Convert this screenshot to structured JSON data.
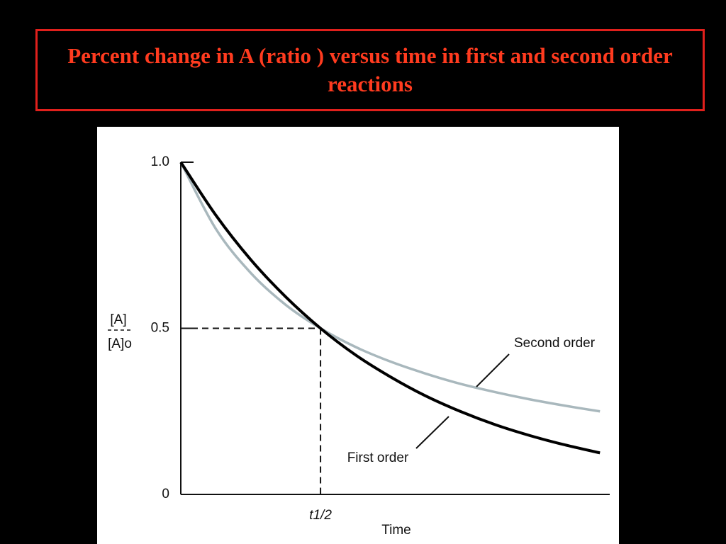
{
  "chart_data": {
    "type": "line",
    "title": "Percent change in A (ratio ) versus time in first and second order reactions",
    "x_label": "Time",
    "y_label": {
      "numerator": "[A]",
      "denominator": "[A]o"
    },
    "x": [
      0,
      0.25,
      0.5,
      0.75,
      1,
      1.25,
      1.5,
      1.75,
      2,
      2.25,
      2.5,
      2.75,
      3
    ],
    "series": [
      {
        "name": "First order",
        "color": "#000000",
        "values": [
          1,
          0.841,
          0.707,
          0.595,
          0.5,
          0.42,
          0.354,
          0.297,
          0.25,
          0.21,
          0.177,
          0.149,
          0.125
        ]
      },
      {
        "name": "Second order",
        "color": "#a9b8bd",
        "values": [
          1,
          0.8,
          0.667,
          0.571,
          0.5,
          0.444,
          0.4,
          0.364,
          0.333,
          0.308,
          0.286,
          0.267,
          0.25
        ]
      }
    ],
    "xlim": [
      0,
      3.07
    ],
    "ylim": [
      0,
      1
    ],
    "xticks": [
      {
        "value": 1,
        "label": "t1/2"
      }
    ],
    "yticks": [
      0,
      0.5,
      {
        "value": 1,
        "label": "1.0"
      }
    ]
  }
}
